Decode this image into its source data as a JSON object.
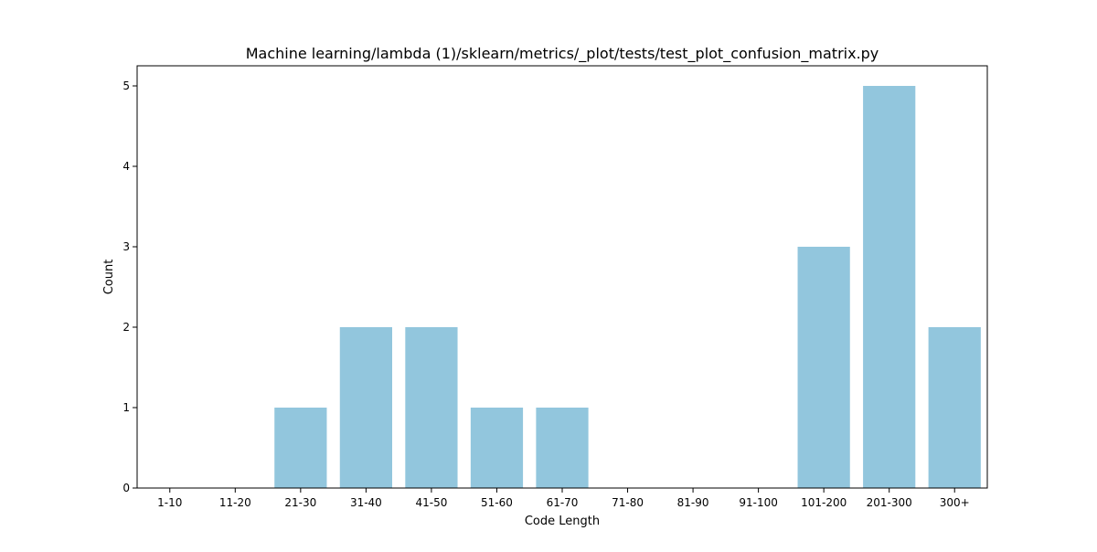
{
  "chart_data": {
    "type": "bar",
    "title": "Machine learning/lambda (1)/sklearn/metrics/_plot/tests/test_plot_confusion_matrix.py",
    "xlabel": "Code Length",
    "ylabel": "Count",
    "categories": [
      "1-10",
      "11-20",
      "21-30",
      "31-40",
      "41-50",
      "51-60",
      "61-70",
      "71-80",
      "81-90",
      "91-100",
      "101-200",
      "201-300",
      "300+"
    ],
    "values": [
      0,
      0,
      1,
      2,
      2,
      1,
      1,
      0,
      0,
      0,
      3,
      5,
      2
    ],
    "yticks": [
      0,
      1,
      2,
      3,
      4,
      5
    ],
    "ylim": [
      0,
      5.25
    ],
    "bar_color": "#92c6dd",
    "grid": false,
    "legend": "none"
  }
}
